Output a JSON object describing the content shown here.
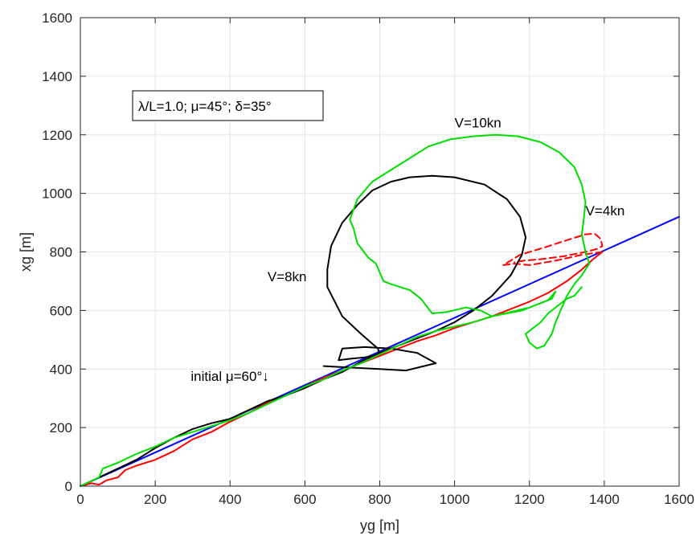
{
  "chart_data": {
    "type": "line",
    "xlabel": "yg [m]",
    "ylabel": "xg [m]",
    "xlim": [
      0,
      1600
    ],
    "ylim": [
      0,
      1600
    ],
    "xticks": [
      0,
      200,
      400,
      600,
      800,
      1000,
      1200,
      1400,
      1600
    ],
    "yticks": [
      0,
      200,
      400,
      600,
      800,
      1000,
      1200,
      1400,
      1600
    ],
    "grid": true,
    "legend_box_text": "λ/L=1.0; μ=45°; δ=35°",
    "series": [
      {
        "color": "#0000ff",
        "points": [
          [
            0,
            0
          ],
          [
            1600,
            920
          ]
        ]
      },
      {
        "color": "#ff0000",
        "points": [
          [
            0,
            0
          ],
          [
            30,
            10
          ],
          [
            50,
            5
          ],
          [
            70,
            20
          ],
          [
            100,
            30
          ],
          [
            120,
            55
          ],
          [
            150,
            70
          ],
          [
            200,
            90
          ],
          [
            250,
            120
          ],
          [
            300,
            160
          ],
          [
            350,
            185
          ],
          [
            400,
            220
          ],
          [
            450,
            250
          ],
          [
            500,
            285
          ],
          [
            550,
            310
          ],
          [
            600,
            340
          ],
          [
            650,
            370
          ],
          [
            700,
            395
          ],
          [
            750,
            420
          ],
          [
            800,
            445
          ],
          [
            850,
            470
          ],
          [
            900,
            495
          ],
          [
            950,
            515
          ],
          [
            1000,
            540
          ],
          [
            1050,
            560
          ],
          [
            1100,
            580
          ],
          [
            1150,
            605
          ],
          [
            1200,
            630
          ],
          [
            1250,
            660
          ],
          [
            1300,
            700
          ],
          [
            1340,
            740
          ],
          [
            1370,
            775
          ],
          [
            1395,
            800
          ]
        ]
      },
      {
        "color": "#ff0000",
        "dashed": true,
        "points": [
          [
            1395,
            800
          ],
          [
            1340,
            790
          ],
          [
            1270,
            770
          ],
          [
            1200,
            755
          ],
          [
            1160,
            760
          ],
          [
            1130,
            755
          ],
          [
            1175,
            790
          ],
          [
            1240,
            815
          ],
          [
            1300,
            840
          ],
          [
            1350,
            860
          ],
          [
            1375,
            862
          ],
          [
            1390,
            845
          ],
          [
            1395,
            820
          ],
          [
            1380,
            810
          ],
          [
            1350,
            800
          ],
          [
            1290,
            785
          ],
          [
            1230,
            775
          ],
          [
            1185,
            770
          ],
          [
            1160,
            765
          ]
        ]
      },
      {
        "color": "#000000",
        "points": [
          [
            0,
            0
          ],
          [
            50,
            30
          ],
          [
            100,
            60
          ],
          [
            150,
            90
          ],
          [
            200,
            130
          ],
          [
            250,
            165
          ],
          [
            300,
            195
          ],
          [
            350,
            215
          ],
          [
            400,
            230
          ],
          [
            450,
            260
          ],
          [
            500,
            290
          ],
          [
            550,
            310
          ],
          [
            600,
            335
          ],
          [
            650,
            365
          ],
          [
            700,
            390
          ],
          [
            750,
            425
          ],
          [
            800,
            455
          ],
          [
            850,
            480
          ],
          [
            900,
            505
          ],
          [
            950,
            530
          ],
          [
            1000,
            560
          ],
          [
            1050,
            600
          ],
          [
            1100,
            650
          ],
          [
            1150,
            720
          ],
          [
            1180,
            790
          ],
          [
            1190,
            850
          ],
          [
            1175,
            920
          ],
          [
            1140,
            980
          ],
          [
            1080,
            1030
          ],
          [
            1000,
            1055
          ],
          [
            940,
            1060
          ],
          [
            880,
            1055
          ],
          [
            830,
            1040
          ],
          [
            780,
            1010
          ],
          [
            740,
            960
          ],
          [
            700,
            900
          ],
          [
            670,
            820
          ],
          [
            660,
            740
          ],
          [
            660,
            680
          ],
          [
            700,
            580
          ],
          [
            750,
            520
          ],
          [
            795,
            470
          ],
          [
            800,
            450
          ],
          [
            760,
            440
          ],
          [
            720,
            435
          ],
          [
            690,
            430
          ],
          [
            700,
            470
          ],
          [
            760,
            475
          ],
          [
            830,
            470
          ],
          [
            900,
            455
          ],
          [
            950,
            420
          ],
          [
            870,
            395
          ],
          [
            800,
            400
          ],
          [
            720,
            405
          ],
          [
            650,
            410
          ]
        ]
      },
      {
        "color": "#00dd00",
        "points": [
          [
            0,
            0
          ],
          [
            50,
            30
          ],
          [
            60,
            60
          ],
          [
            100,
            80
          ],
          [
            150,
            110
          ],
          [
            200,
            135
          ],
          [
            250,
            165
          ],
          [
            300,
            185
          ],
          [
            350,
            205
          ],
          [
            400,
            225
          ],
          [
            450,
            250
          ],
          [
            500,
            280
          ],
          [
            550,
            310
          ],
          [
            600,
            340
          ],
          [
            650,
            365
          ],
          [
            700,
            395
          ],
          [
            750,
            420
          ],
          [
            800,
            450
          ],
          [
            850,
            480
          ],
          [
            900,
            510
          ],
          [
            950,
            530
          ],
          [
            1000,
            545
          ],
          [
            1050,
            560
          ],
          [
            1100,
            580
          ],
          [
            1150,
            595
          ],
          [
            1200,
            610
          ],
          [
            1250,
            635
          ],
          [
            1270,
            665
          ],
          [
            1260,
            640
          ],
          [
            1220,
            620
          ],
          [
            1180,
            600
          ],
          [
            1140,
            590
          ],
          [
            1100,
            580
          ],
          [
            1070,
            600
          ],
          [
            1030,
            610
          ],
          [
            980,
            595
          ],
          [
            940,
            590
          ],
          [
            910,
            640
          ],
          [
            880,
            670
          ],
          [
            830,
            690
          ],
          [
            810,
            700
          ],
          [
            790,
            760
          ],
          [
            770,
            780
          ],
          [
            740,
            830
          ],
          [
            730,
            880
          ],
          [
            720,
            910
          ],
          [
            740,
            980
          ],
          [
            780,
            1040
          ],
          [
            830,
            1080
          ],
          [
            880,
            1120
          ],
          [
            930,
            1160
          ],
          [
            990,
            1185
          ],
          [
            1050,
            1195
          ],
          [
            1110,
            1200
          ],
          [
            1170,
            1195
          ],
          [
            1230,
            1175
          ],
          [
            1280,
            1140
          ],
          [
            1320,
            1090
          ],
          [
            1340,
            1030
          ],
          [
            1350,
            970
          ],
          [
            1345,
            910
          ],
          [
            1340,
            860
          ],
          [
            1350,
            800
          ],
          [
            1360,
            760
          ],
          [
            1340,
            720
          ],
          [
            1320,
            690
          ],
          [
            1300,
            650
          ],
          [
            1290,
            620
          ],
          [
            1280,
            590
          ],
          [
            1270,
            560
          ],
          [
            1260,
            520
          ],
          [
            1250,
            500
          ],
          [
            1240,
            480
          ],
          [
            1220,
            470
          ],
          [
            1200,
            490
          ],
          [
            1190,
            520
          ],
          [
            1210,
            540
          ],
          [
            1230,
            560
          ],
          [
            1250,
            590
          ],
          [
            1280,
            620
          ],
          [
            1300,
            640
          ],
          [
            1320,
            650
          ],
          [
            1340,
            680
          ]
        ]
      }
    ],
    "annotations": [
      {
        "text": "V=10kn",
        "x": 1000,
        "y": 1225
      },
      {
        "text": "V=4kn",
        "x": 1350,
        "y": 925
      },
      {
        "text": "V=8kn",
        "x": 500,
        "y": 700
      },
      {
        "text": "initial μ=60°↓",
        "x": 295,
        "y": 360
      }
    ]
  }
}
